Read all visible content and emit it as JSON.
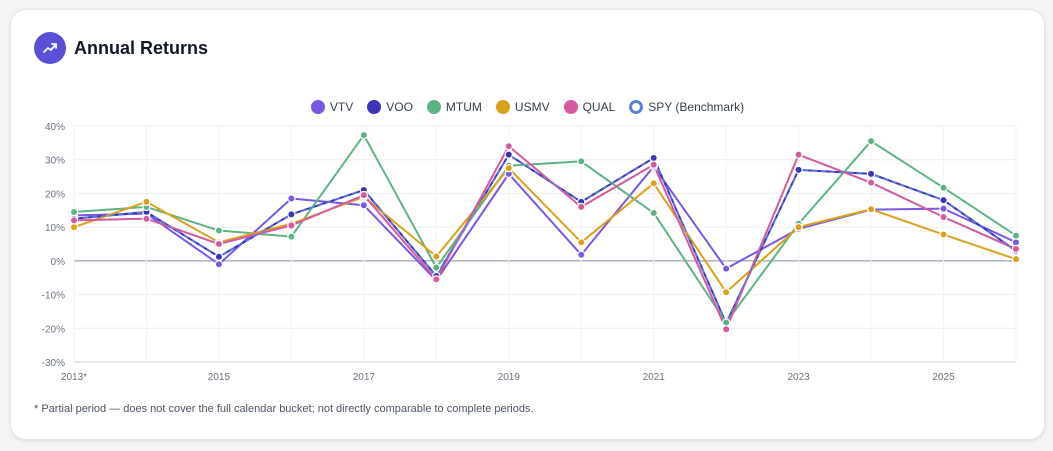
{
  "card": {
    "title": "Annual Returns",
    "title_icon": "trending-up-icon",
    "accent": "#5b4fd6",
    "footnote": "* Partial period — does not cover the full calendar bucket; not directly comparable to complete periods."
  },
  "chart_data": {
    "type": "line",
    "title": "Annual Returns",
    "xlabel": "",
    "ylabel": "",
    "x": [
      2013,
      2014,
      2015,
      2016,
      2017,
      2018,
      2019,
      2020,
      2021,
      2022,
      2023,
      2024,
      2025,
      2026
    ],
    "x_tick_labels": [
      "2013*",
      "2015",
      "2017",
      "2019",
      "2021",
      "2023",
      "2025"
    ],
    "x_tick_values": [
      2013,
      2015,
      2017,
      2019,
      2021,
      2023,
      2025
    ],
    "ylim": [
      -30,
      40
    ],
    "y_ticks": [
      -30,
      -20,
      -10,
      0,
      10,
      20,
      30,
      40
    ],
    "y_tick_labels": [
      "-30%",
      "-20%",
      "-10%",
      "0%",
      "10%",
      "20%",
      "30%",
      "40%"
    ],
    "grid": true,
    "legend_position": "top-center",
    "series": [
      {
        "name": "VTV",
        "color": "#7b57e6",
        "values": [
          13.5,
          14.0,
          -1.0,
          18.5,
          16.5,
          -5.8,
          25.8,
          1.8,
          28.0,
          -2.3,
          9.5,
          15.2,
          15.5,
          5.5
        ]
      },
      {
        "name": "VOO",
        "color": "#3b34b8",
        "values": [
          12.5,
          14.5,
          1.2,
          13.8,
          21.0,
          -4.5,
          31.5,
          17.5,
          30.5,
          -18.5,
          27.0,
          25.8,
          18.0,
          3.0
        ]
      },
      {
        "name": "MTUM",
        "color": "#5eb384",
        "values": [
          14.5,
          16.0,
          9.0,
          7.2,
          37.3,
          -2.0,
          28.2,
          29.5,
          14.2,
          -18.3,
          11.0,
          35.5,
          21.7,
          7.5
        ]
      },
      {
        "name": "USMV",
        "color": "#d9a21b",
        "values": [
          10.0,
          17.5,
          5.5,
          11.0,
          19.0,
          1.3,
          27.5,
          5.5,
          23.0,
          -9.3,
          10.0,
          15.3,
          7.8,
          0.5
        ]
      },
      {
        "name": "QUAL",
        "color": "#d35a9f",
        "values": [
          12.0,
          12.5,
          5.0,
          10.5,
          19.5,
          -5.5,
          34.0,
          16.0,
          28.5,
          -20.3,
          31.5,
          23.2,
          13.0,
          3.5
        ]
      },
      {
        "name": "SPY (Benchmark)",
        "color": "#5b82d8",
        "values": [
          12.5,
          14.5,
          1.2,
          13.8,
          21.0,
          -4.5,
          31.5,
          17.5,
          30.5,
          -18.5,
          27.0,
          25.8,
          18.0,
          3.0
        ],
        "dashed": true,
        "hollow_legend": true
      }
    ]
  }
}
